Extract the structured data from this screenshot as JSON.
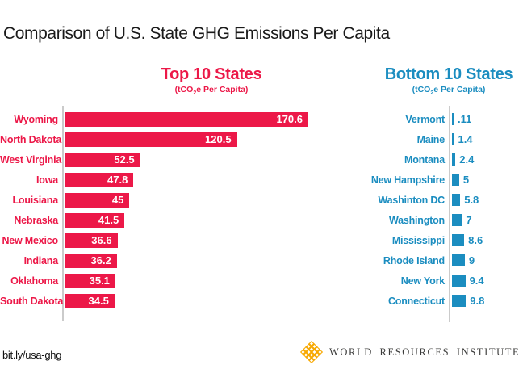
{
  "title": "Comparison of U.S. State GHG Emissions Per Capita",
  "footer": {
    "link_text": "bit.ly/usa-ghg",
    "logo_icon": "wri-diamond-lattice-icon",
    "logo_text": "WORLD RESOURCES INSTITUTE"
  },
  "colors": {
    "top_accent": "#EC1848",
    "bottom_accent": "#1B8DC0",
    "axis_line": "#CBCBCB",
    "wri_logo_yellow": "#F7A800",
    "title_text": "#1A1A1A"
  },
  "chart_data": [
    {
      "type": "bar",
      "orientation": "horizontal",
      "title": "Top 10 States",
      "subtitle": {
        "pre": "(tCO",
        "sub": "2",
        "post": "e Per Capita)"
      },
      "unit": "tCO2e Per Capita",
      "color": "#EC1848",
      "value_label_position": "inside-end",
      "categories": [
        "Wyoming",
        "North Dakota",
        "West Virginia",
        "Iowa",
        "Louisiana",
        "Nebraska",
        "New Mexico",
        "Indiana",
        "Oklahoma",
        "South Dakota"
      ],
      "values": [
        170.6,
        120.5,
        52.5,
        47.8,
        45,
        41.5,
        36.6,
        36.2,
        35.1,
        34.5
      ],
      "value_labels": [
        "170.6",
        "120.5",
        "52.5",
        "47.8",
        "45",
        "41.5",
        "36.6",
        "36.2",
        "35.1",
        "34.5"
      ],
      "xlim": [
        0,
        175
      ],
      "grid": false,
      "legend": false
    },
    {
      "type": "bar",
      "orientation": "horizontal",
      "title": "Bottom 10 States",
      "subtitle": {
        "pre": "(tCO",
        "sub": "2",
        "post": "e Per Capita)"
      },
      "unit": "tCO2e Per Capita",
      "color": "#1B8DC0",
      "value_label_position": "outside-end",
      "categories": [
        "Vermont",
        "Maine",
        "Montana",
        "New Hampshire",
        "Washinton DC",
        "Washington",
        "Mississippi",
        "Rhode Island",
        "New York",
        "Connecticut"
      ],
      "values": [
        0.11,
        1.4,
        2.4,
        5,
        5.8,
        7,
        8.6,
        9,
        9.4,
        9.8
      ],
      "value_labels": [
        ".11",
        "1.4",
        "2.4",
        "5",
        "5.8",
        "7",
        "8.6",
        "9",
        "9.4",
        "9.8"
      ],
      "xlim": [
        0,
        175
      ],
      "grid": false,
      "legend": false
    }
  ]
}
